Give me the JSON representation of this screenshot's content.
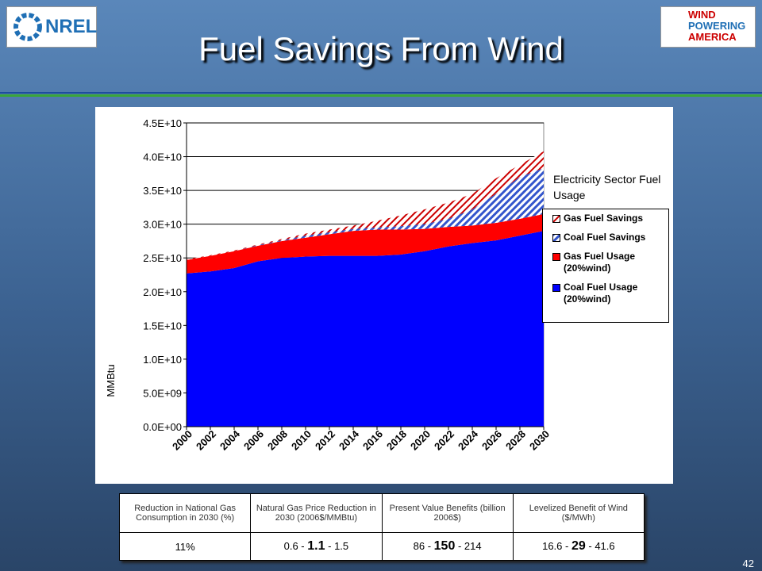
{
  "slide_title": "Fuel Savings From Wind",
  "logos": {
    "left": "NREL",
    "right": [
      "WIND",
      "POWERING",
      "AMERICA"
    ]
  },
  "page_number": "42",
  "chart_data": {
    "type": "stacked_area",
    "y_label": "MMBtu",
    "legend_title": "Electricity Sector Fuel Usage",
    "legend": "right",
    "grid": true,
    "x": [
      2000,
      2002,
      2004,
      2006,
      2008,
      2010,
      2012,
      2014,
      2016,
      2018,
      2020,
      2022,
      2024,
      2026,
      2028,
      2030
    ],
    "xlim": [
      2000,
      2030
    ],
    "ylim": [
      0,
      45000000000.0
    ],
    "yticks": [
      {
        "value": 0,
        "label": "0.0E+00"
      },
      {
        "value": 5000000000.0,
        "label": "5.0E+09"
      },
      {
        "value": 10000000000.0,
        "label": "1.0E+10"
      },
      {
        "value": 15000000000.0,
        "label": "1.5E+10"
      },
      {
        "value": 20000000000.0,
        "label": "2.0E+10"
      },
      {
        "value": 25000000000.0,
        "label": "2.5E+10"
      },
      {
        "value": 30000000000.0,
        "label": "3.0E+10"
      },
      {
        "value": 35000000000.0,
        "label": "3.5E+10"
      },
      {
        "value": 40000000000.0,
        "label": "4.0E+10"
      },
      {
        "value": 45000000000.0,
        "label": "4.5E+10"
      }
    ],
    "series": [
      {
        "name": "Coal Fuel Usage (20%wind)",
        "color": "#0000ff",
        "fill_style": "solid",
        "values": [
          22700000000.0,
          23000000000.0,
          23500000000.0,
          24500000000.0,
          25000000000.0,
          25200000000.0,
          25300000000.0,
          25300000000.0,
          25300000000.0,
          25500000000.0,
          26000000000.0,
          26700000000.0,
          27200000000.0,
          27600000000.0,
          28300000000.0,
          29000000000.0
        ]
      },
      {
        "name": "Gas Fuel Usage (20%wind)",
        "color": "#ff0000",
        "fill_style": "solid",
        "values": [
          2000000000.0,
          2300000000.0,
          2500000000.0,
          2300000000.0,
          2500000000.0,
          2800000000.0,
          3200000000.0,
          3700000000.0,
          3900000000.0,
          3700000000.0,
          3300000000.0,
          2900000000.0,
          2600000000.0,
          2600000000.0,
          2500000000.0,
          2500000000.0
        ]
      },
      {
        "name": "Coal Fuel Savings",
        "color": "#3355cc",
        "fill_style": "hatched",
        "values": [
          0,
          0,
          0,
          100000000.0,
          100000000.0,
          300000000.0,
          300000000.0,
          300000000.0,
          300000000.0,
          500000000.0,
          700000000.0,
          1200000000.0,
          2400000000.0,
          4300000000.0,
          6200000000.0,
          6800000000.0
        ]
      },
      {
        "name": "Gas Fuel Savings",
        "color": "#cc0000",
        "fill_style": "hatched",
        "values": [
          100000000.0,
          100000000.0,
          100000000.0,
          100000000.0,
          200000000.0,
          300000000.0,
          400000000.0,
          500000000.0,
          1000000000.0,
          1600000000.0,
          2200000000.0,
          2400000000.0,
          2300000000.0,
          2300000000.0,
          1800000000.0,
          2500000000.0
        ]
      }
    ]
  },
  "table": {
    "header": [
      "Reduction in National Gas Consumption in 2030 (%)",
      "Natural Gas Price Reduction in 2030 (2006$/MMBtu)",
      "Present Value Benefits (billion 2006$)",
      "Levelized Benefit of Wind ($/MWh)"
    ],
    "rows": [
      [
        [
          "11%"
        ],
        [
          "0.6 -",
          "1.1",
          "- 1.5"
        ],
        [
          "86 -",
          "150",
          "- 214"
        ],
        [
          "16.6 -",
          "29",
          "- 41.6"
        ]
      ]
    ]
  }
}
